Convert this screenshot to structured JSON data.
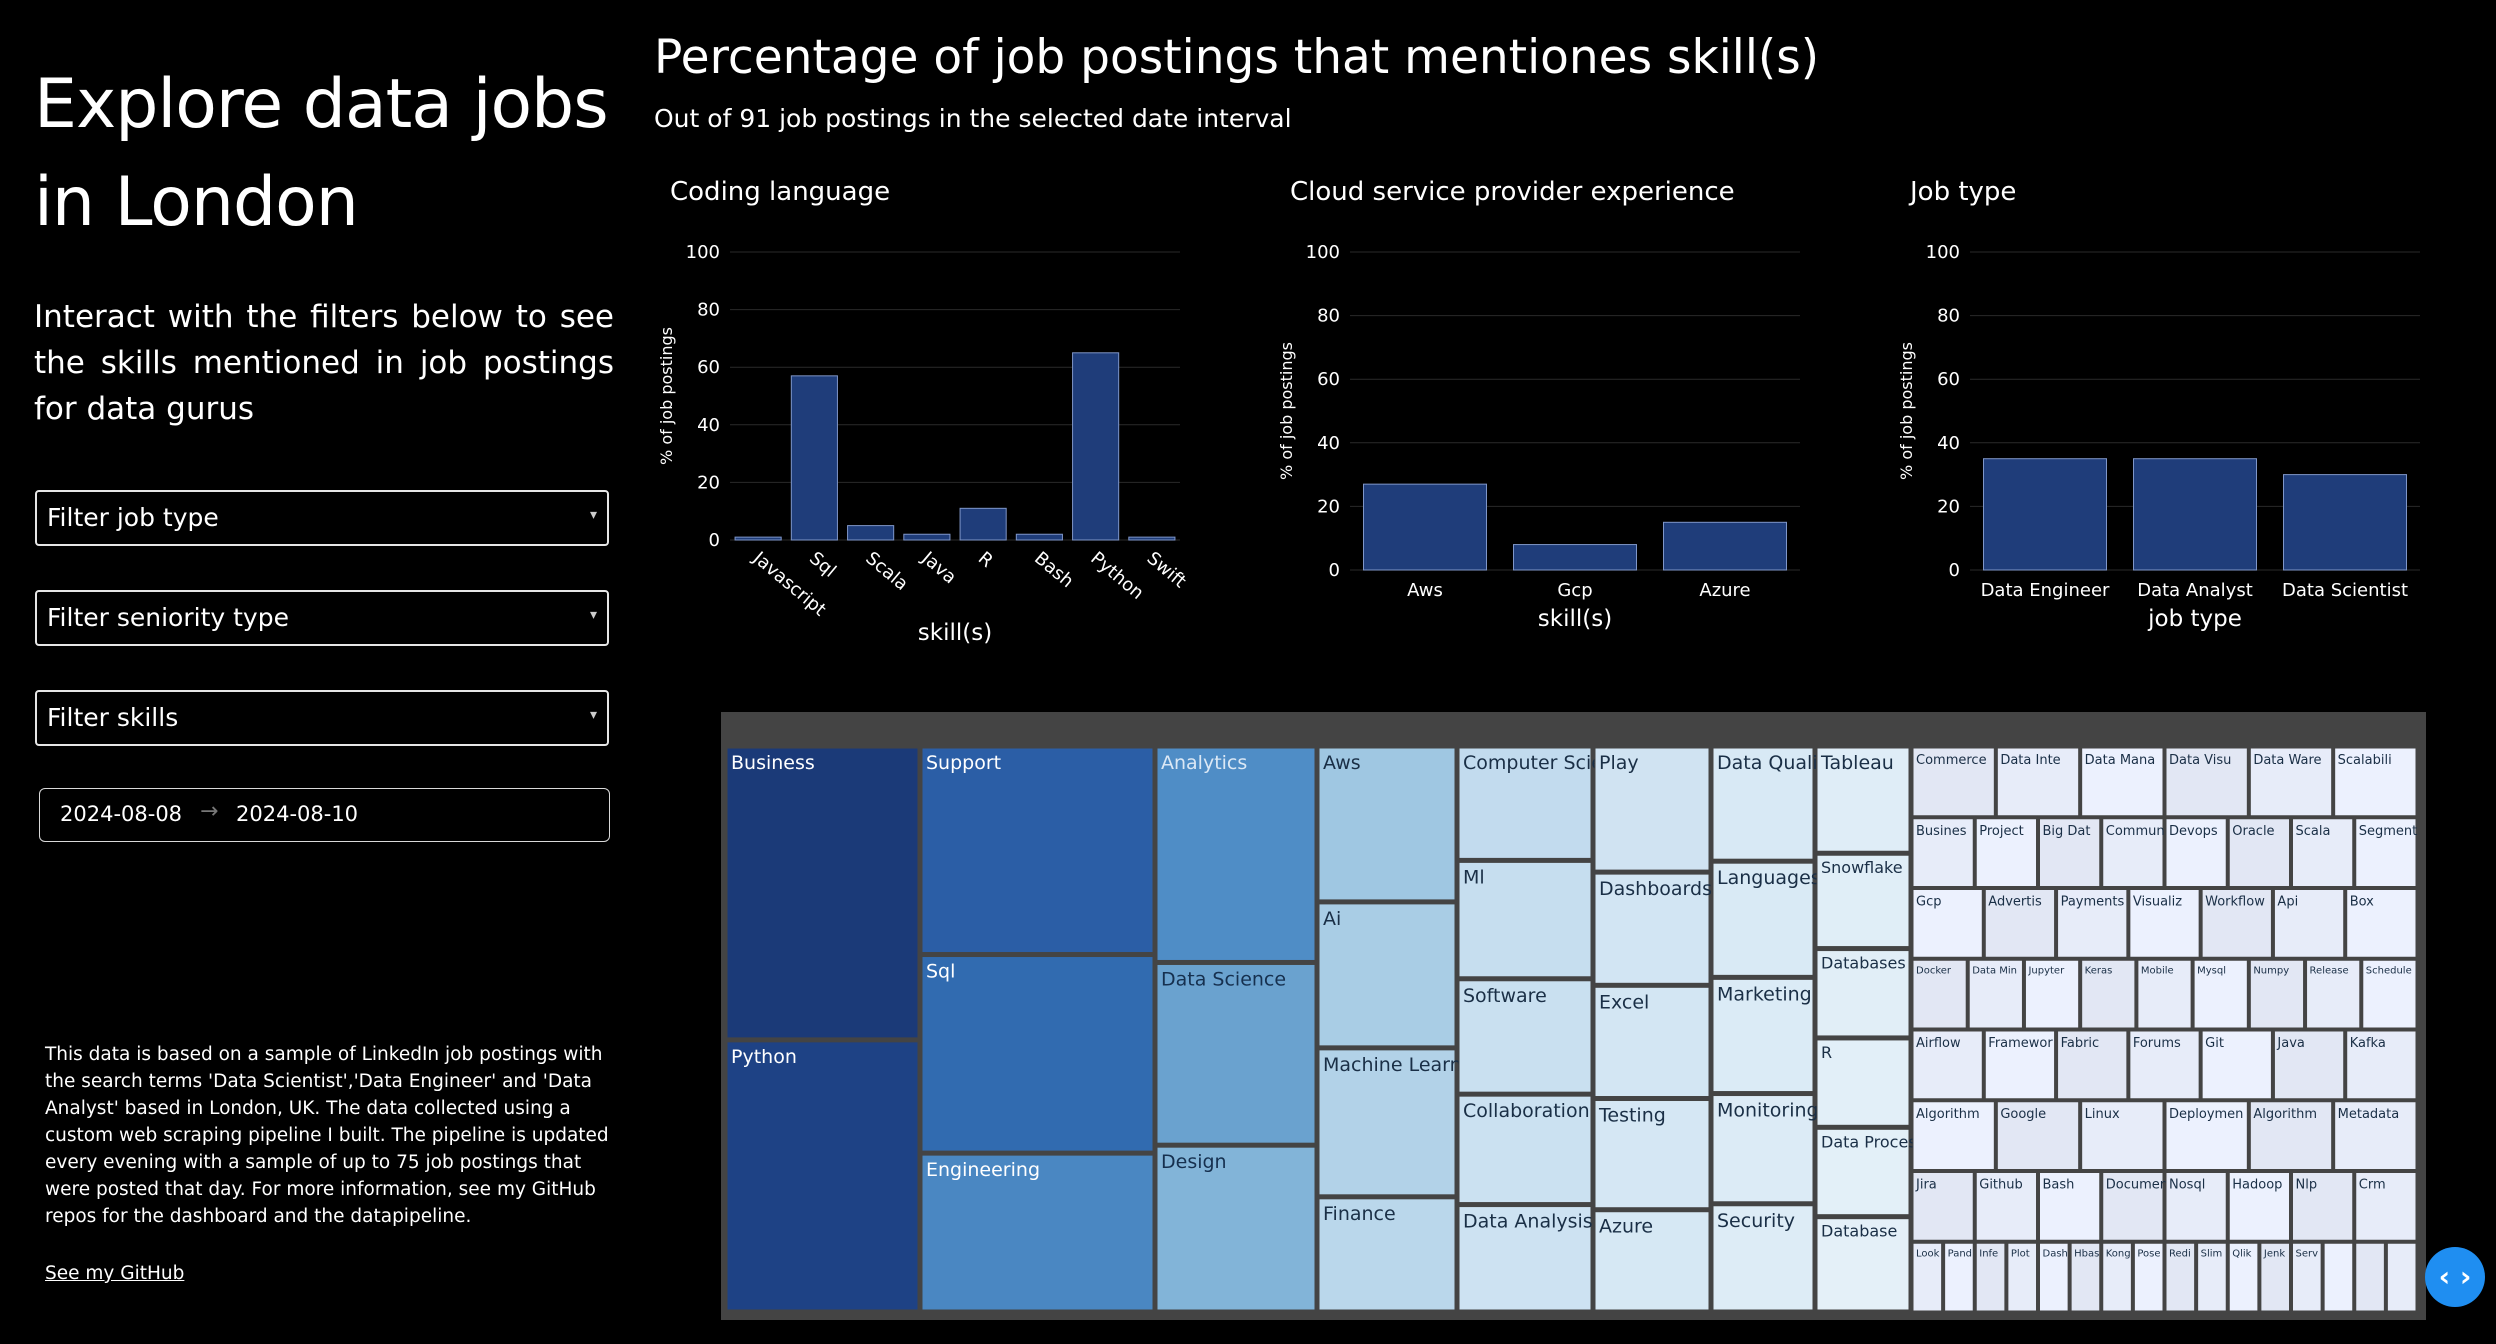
{
  "sidebar": {
    "title": "Explore data jobs in London",
    "intro": "Interact with the filters below to see the skills mentioned in job postings for data gurus",
    "filters": {
      "job_type": "Filter job type",
      "seniority": "Filter seniority type",
      "skills": "Filter skills"
    },
    "dropdown_icon": "chevron-down-icon",
    "date_range": {
      "start": "2024-08-08",
      "arrow": "→",
      "end": "2024-08-10"
    },
    "footnote": "This data is based on a sample of LinkedIn job postings with the search terms 'Data Scientist','Data Engineer' and 'Data Analyst' based in London, UK. The data collected using a custom web scraping pipeline I built. The pipeline is updated every evening with a sample of up to 75 job postings that were posted that day. For more information, see my GitHub repos for the dashboard and the datapipeline.",
    "github_link": "See my GitHub"
  },
  "main": {
    "title": "Percentage of job postings that mentiones skill(s)",
    "subtitle": "Out of 91 job postings in the selected date interval"
  },
  "colors": {
    "bar": "#1f3d7a",
    "bar_stroke": "#7f96c8",
    "grid": "#2a2a2a",
    "background": "#000000"
  },
  "chart_data": [
    {
      "type": "bar",
      "title": "Coding language",
      "xlabel": "skill(s)",
      "ylabel": "% of job postings",
      "ylim": [
        0,
        100
      ],
      "yticks": [
        0,
        20,
        40,
        60,
        80,
        100
      ],
      "categories": [
        "Javascript",
        "Sql",
        "Scala",
        "Java",
        "R",
        "Bash",
        "Python",
        "Swift"
      ],
      "values": [
        1,
        57,
        5,
        2,
        11,
        2,
        65,
        1
      ],
      "rotated_labels": true,
      "grid": true
    },
    {
      "type": "bar",
      "title": "Cloud service provider experience",
      "xlabel": "skill(s)",
      "ylabel": "% of job postings",
      "ylim": [
        0,
        100
      ],
      "yticks": [
        0,
        20,
        40,
        60,
        80,
        100
      ],
      "categories": [
        "Aws",
        "Gcp",
        "Azure"
      ],
      "values": [
        27,
        8,
        15
      ],
      "rotated_labels": false,
      "grid": true
    },
    {
      "type": "bar",
      "title": "Job type",
      "xlabel": "job type",
      "ylabel": "% of job postings",
      "ylim": [
        0,
        100
      ],
      "yticks": [
        0,
        20,
        40,
        60,
        80,
        100
      ],
      "categories": [
        "Data Engineer",
        "Data Analyst",
        "Data Scientist"
      ],
      "values": [
        35,
        35,
        30
      ],
      "rotated_labels": false,
      "grid": true
    }
  ],
  "treemap": {
    "columns": [
      {
        "width": 195,
        "cells": [
          {
            "label": "Business",
            "weight": 297,
            "color": "#1b3a78",
            "text": "#ffffff"
          },
          {
            "label": "Python",
            "weight": 275,
            "color": "#1e4285",
            "text": "#ffffff"
          }
        ]
      },
      {
        "width": 235,
        "cells": [
          {
            "label": "Support",
            "weight": 210,
            "color": "#2b5ea6",
            "text": "#ffffff"
          },
          {
            "label": "Sql",
            "weight": 200,
            "color": "#316bb0",
            "text": "#ffffff"
          },
          {
            "label": "Engineering",
            "weight": 160,
            "color": "#4a87c2",
            "text": "#ffffff"
          }
        ]
      },
      {
        "width": 162,
        "cells": [
          {
            "label": "Analytics",
            "weight": 218,
            "color": "#4f8dc6",
            "text": "#dbe8f5"
          },
          {
            "label": "Data Science",
            "weight": 184,
            "color": "#6aa2cf",
            "text": "#16304f"
          },
          {
            "label": "Design",
            "weight": 168,
            "color": "#82b4d8",
            "text": "#16304f"
          }
        ]
      },
      {
        "width": 140,
        "cells": [
          {
            "label": "Aws",
            "weight": 157,
            "color": "#9fc7e2",
            "text": "#1a2f46"
          },
          {
            "label": "Ai",
            "weight": 147,
            "color": "#a9cde5",
            "text": "#1a2f46"
          },
          {
            "label": "Machine Learning",
            "weight": 150,
            "color": "#b2d2e8",
            "text": "#1a2f46"
          },
          {
            "label": "Finance",
            "weight": 116,
            "color": "#bad7eb",
            "text": "#1a2f46"
          }
        ]
      },
      {
        "width": 136,
        "cells": [
          {
            "label": "Computer Science",
            "weight": 115,
            "color": "#c2dbee",
            "text": "#1a2f46"
          },
          {
            "label": "Ml",
            "weight": 119,
            "color": "#c6deef",
            "text": "#1a2f46"
          },
          {
            "label": "Software",
            "weight": 116,
            "color": "#c9e0f0",
            "text": "#1a2f46"
          },
          {
            "label": "Collaboration",
            "weight": 111,
            "color": "#cbe1f1",
            "text": "#1a2f46"
          },
          {
            "label": "Data Analysis",
            "weight": 108,
            "color": "#cde2f2",
            "text": "#1a2f46"
          }
        ]
      },
      {
        "width": 118,
        "cells": [
          {
            "label": "Play",
            "weight": 127,
            "color": "#d0e3f2",
            "text": "#1a2f46"
          },
          {
            "label": "Dashboards",
            "weight": 114,
            "color": "#d2e5f3",
            "text": "#1a2f46"
          },
          {
            "label": "Excel",
            "weight": 114,
            "color": "#d3e6f3",
            "text": "#1a2f46"
          },
          {
            "label": "Testing",
            "weight": 112,
            "color": "#d5e7f4",
            "text": "#1a2f46"
          },
          {
            "label": "Azure",
            "weight": 103,
            "color": "#d6e8f4",
            "text": "#1a2f46"
          }
        ]
      },
      {
        "width": 104,
        "cells": [
          {
            "label": "Data Quality",
            "weight": 116,
            "color": "#d8e9f5",
            "text": "#1a2f46"
          },
          {
            "label": "Languages",
            "weight": 117,
            "color": "#d9eaf5",
            "text": "#1a2f46"
          },
          {
            "label": "Marketing",
            "weight": 117,
            "color": "#dbebf6",
            "text": "#1a2f46"
          },
          {
            "label": "Monitoring",
            "weight": 111,
            "color": "#dcebf6",
            "text": "#1a2f46"
          },
          {
            "label": "Security",
            "weight": 109,
            "color": "#ddecf6",
            "text": "#1a2f46"
          }
        ]
      },
      {
        "width": 96,
        "cells": [
          {
            "label": "Tableau",
            "weight": 108,
            "color": "#dfedf7",
            "text": "#1a2f46"
          },
          {
            "label": "Snowflake",
            "weight": 96,
            "color": "#e0eef7",
            "text": "#1a2f46"
          },
          {
            "label": "Databases",
            "weight": 90,
            "color": "#e1eef7",
            "text": "#1a2f46"
          },
          {
            "label": "R",
            "weight": 90,
            "color": "#e2eff8",
            "text": "#1a2f46"
          },
          {
            "label": "Data Processing",
            "weight": 90,
            "color": "#e3f0f8",
            "text": "#1a2f46"
          },
          {
            "label": "Database",
            "weight": 96,
            "color": "#e4f0f8",
            "text": "#1a2f46"
          }
        ]
      }
    ],
    "small_tiles": [
      "Commerce",
      "Data Integrity",
      "Data Management",
      "Data Visualization",
      "Data Warehouse",
      "Scalability",
      "Business Intelligence",
      "Project Management",
      "Big Data",
      "Communications",
      "Devops",
      "Oracle",
      "Scala",
      "Segmentation",
      "Gcp",
      "Advertising",
      "Payments",
      "Visualization",
      "Workflow",
      "Api",
      "Box",
      "Docker",
      "Data Mining",
      "Jupyter",
      "Keras",
      "Mobile",
      "Mysql",
      "Numpy",
      "Release",
      "Schedule",
      "Airflow",
      "Framework",
      "Fabric",
      "Forums",
      "Git",
      "Java",
      "Kafka",
      "Algorithms",
      "Google",
      "Linux",
      "Deployment",
      "Algorithm",
      "Metadata",
      "Jira",
      "Github",
      "Bash",
      "Documentation",
      "Nosql",
      "Hadoop",
      "Nlp",
      "Crm",
      "Looker",
      "Pandas",
      "Inference",
      "Plotly",
      "Dash",
      "Hbase",
      "Kong",
      "Pose",
      "Redis",
      "Slim",
      "Qlik",
      "Jenkins",
      "Server"
    ]
  },
  "code_toggle_icon": "code-brackets-icon",
  "code_toggle_glyph": "‹ ›"
}
